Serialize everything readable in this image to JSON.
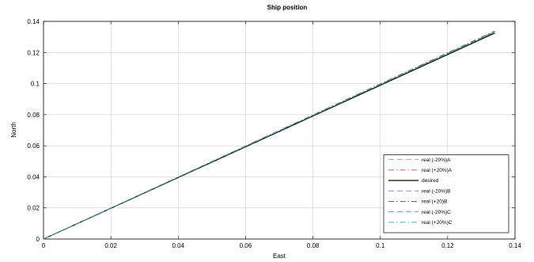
{
  "chart_data": {
    "type": "line",
    "title": "Ship position",
    "xlabel": "East",
    "ylabel": "North",
    "xlim": [
      0,
      0.14
    ],
    "ylim": [
      0,
      0.14
    ],
    "x_ticks": [
      "0",
      "0.02",
      "0.04",
      "0.06",
      "0.08",
      "0.1",
      "0.12",
      "0.14"
    ],
    "y_ticks": [
      "0",
      "0.02",
      "0.04",
      "0.06",
      "0.08",
      "0.1",
      "0.12",
      "0.14"
    ],
    "grid": true,
    "legend_position": "bottom-right",
    "series": [
      {
        "name": "real (-20%)A",
        "color": "#d97878",
        "dash": "dash",
        "x": [
          0,
          0.134
        ],
        "y": [
          0,
          0.1335
        ]
      },
      {
        "name": "real (+20%)A",
        "color": "#b5506e",
        "dash": "dashdot",
        "x": [
          0,
          0.134
        ],
        "y": [
          0,
          0.1338
        ]
      },
      {
        "name": "desired",
        "color": "#000000",
        "dash": "solid",
        "x": [
          0,
          0.134
        ],
        "y": [
          0,
          0.1325
        ]
      },
      {
        "name": "real (-20%)B",
        "color": "#7c7cbf",
        "dash": "dash",
        "x": [
          0,
          0.134
        ],
        "y": [
          0,
          0.1332
        ]
      },
      {
        "name": "real (+20)B",
        "color": "#333333",
        "dash": "dashdot",
        "x": [
          0,
          0.134
        ],
        "y": [
          0,
          0.1336
        ]
      },
      {
        "name": "real (-20%)C",
        "color": "#2e9a6e",
        "dash": "dash",
        "x": [
          0,
          0.134
        ],
        "y": [
          0,
          0.133
        ]
      },
      {
        "name": "real (+20%)C",
        "color": "#3aa0a0",
        "dash": "dashdot",
        "x": [
          0,
          0.134
        ],
        "y": [
          0,
          0.1334
        ]
      }
    ]
  }
}
